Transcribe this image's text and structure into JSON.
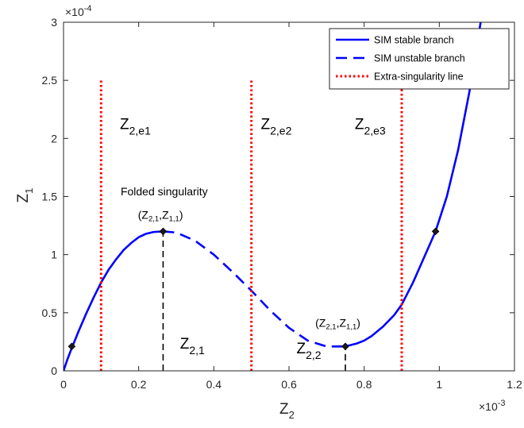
{
  "chart_data": {
    "type": "line",
    "title": "",
    "xlabel": "Z",
    "xlabel_sub": "2",
    "ylabel": "Z",
    "ylabel_sub": "1",
    "xlim": [
      0,
      1.2
    ],
    "ylim": [
      0,
      3
    ],
    "x_exponent": "×10",
    "x_exponent_power": "-3",
    "y_exponent": "×10",
    "y_exponent_power": "-4",
    "grid": false,
    "legend_position": "top-right",
    "x_ticks": [
      {
        "value": 0,
        "label": "0"
      },
      {
        "value": 0.2,
        "label": "0.2"
      },
      {
        "value": 0.4,
        "label": "0.4"
      },
      {
        "value": 0.6,
        "label": "0.6"
      },
      {
        "value": 0.8,
        "label": "0.8"
      },
      {
        "value": 1.0,
        "label": "1"
      },
      {
        "value": 1.2,
        "label": "1.2"
      }
    ],
    "y_ticks": [
      {
        "value": 0,
        "label": "0"
      },
      {
        "value": 0.5,
        "label": "0.5"
      },
      {
        "value": 1.0,
        "label": "1"
      },
      {
        "value": 1.5,
        "label": "1.5"
      },
      {
        "value": 2.0,
        "label": "2"
      },
      {
        "value": 2.5,
        "label": "2.5"
      },
      {
        "value": 3.0,
        "label": "3"
      }
    ],
    "series": [
      {
        "name": "SIM stable branch",
        "color": "#0000ff",
        "style": "solid",
        "segments": [
          [
            [
              0,
              0
            ],
            [
              0.01,
              0.095
            ],
            [
              0.02,
              0.18
            ],
            [
              0.04,
              0.34
            ],
            [
              0.06,
              0.49
            ],
            [
              0.08,
              0.63
            ],
            [
              0.1,
              0.76
            ],
            [
              0.12,
              0.87
            ],
            [
              0.14,
              0.96
            ],
            [
              0.16,
              1.04
            ],
            [
              0.18,
              1.1
            ],
            [
              0.2,
              1.15
            ],
            [
              0.22,
              1.18
            ],
            [
              0.24,
              1.195
            ],
            [
              0.265,
              1.2
            ]
          ],
          [
            [
              0.75,
              0.21
            ],
            [
              0.78,
              0.235
            ],
            [
              0.8,
              0.26
            ],
            [
              0.82,
              0.3
            ],
            [
              0.85,
              0.38
            ],
            [
              0.88,
              0.48
            ],
            [
              0.9,
              0.57
            ],
            [
              0.93,
              0.76
            ],
            [
              0.96,
              0.98
            ],
            [
              0.99,
              1.2
            ],
            [
              1.02,
              1.5
            ],
            [
              1.05,
              1.9
            ],
            [
              1.08,
              2.4
            ],
            [
              1.1,
              2.8
            ],
            [
              1.11,
              3.0
            ]
          ]
        ]
      },
      {
        "name": "SIM unstable branch",
        "color": "#0000ff",
        "style": "dashed",
        "segments": [
          [
            [
              0.265,
              1.2
            ],
            [
              0.3,
              1.19
            ],
            [
              0.35,
              1.12
            ],
            [
              0.4,
              1.0
            ],
            [
              0.45,
              0.85
            ],
            [
              0.5,
              0.69
            ],
            [
              0.55,
              0.52
            ],
            [
              0.6,
              0.37
            ],
            [
              0.65,
              0.26
            ],
            [
              0.7,
              0.21
            ],
            [
              0.75,
              0.21
            ]
          ]
        ]
      },
      {
        "name": "Extra-singularity line",
        "color": "#ff0000",
        "style": "dotted",
        "segments": [
          [
            [
              0.1,
              0
            ],
            [
              0.1,
              2.5
            ]
          ],
          [
            [
              0.5,
              0
            ],
            [
              0.5,
              2.5
            ]
          ],
          [
            [
              0.9,
              0
            ],
            [
              0.9,
              2.5
            ]
          ]
        ]
      }
    ],
    "markers": [
      {
        "x": 0.022,
        "y": 0.21
      },
      {
        "x": 0.265,
        "y": 1.2
      },
      {
        "x": 0.75,
        "y": 0.21
      },
      {
        "x": 0.99,
        "y": 1.2
      }
    ],
    "black_dashed_lines": [
      {
        "x": 0.265,
        "y_from": 0,
        "y_to": 1.2
      },
      {
        "x": 0.75,
        "y_from": 0,
        "y_to": 0.21
      }
    ],
    "annotations": [
      {
        "text": "Z",
        "sub": "2,e1",
        "x": 0.15,
        "y": 2.08,
        "size": 19
      },
      {
        "text": "Z",
        "sub": "2,e2",
        "x": 0.525,
        "y": 2.08,
        "size": 19
      },
      {
        "text": "Z",
        "sub": "2,e3",
        "x": 0.775,
        "y": 2.08,
        "size": 19
      },
      {
        "text": "Folded singularity",
        "sub": "",
        "x": 0.152,
        "y": 1.51,
        "size": 14
      },
      {
        "text": "Z",
        "sub": "2,1",
        "x": 0.31,
        "y": 0.19,
        "size": 19
      },
      {
        "text": "Z",
        "sub": "2,2",
        "x": 0.62,
        "y": 0.15,
        "size": 19
      }
    ],
    "point_labels": [
      {
        "a": "Z",
        "a_sub": "2,1",
        "b": "Z",
        "b_sub": "1,1",
        "x": 0.198,
        "y": 1.31
      },
      {
        "a": "Z",
        "a_sub": "2,1",
        "b": "Z",
        "b_sub": "1,1",
        "x": 0.67,
        "y": 0.38
      }
    ]
  }
}
